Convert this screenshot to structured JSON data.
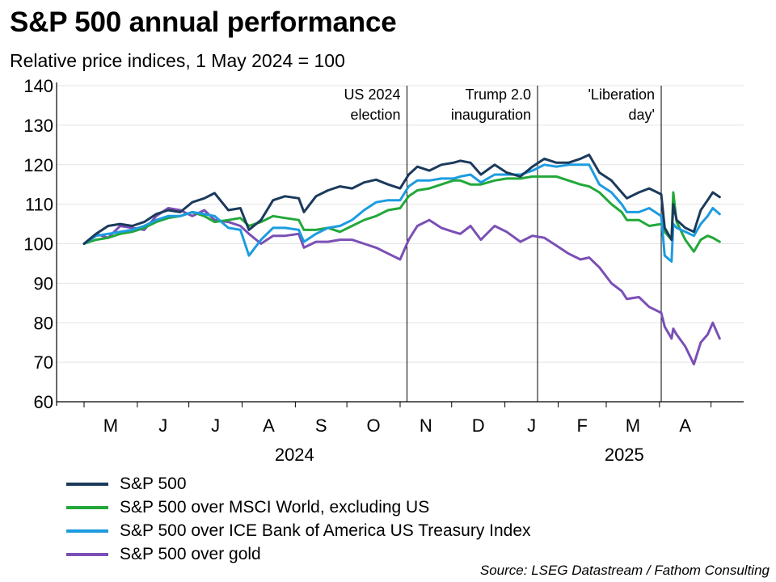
{
  "title": "S&P 500 annual performance",
  "subtitle": "Relative price indices, 1 May 2024 = 100",
  "source": "Source: LSEG Datastream / Fathom Consulting",
  "chart_data": {
    "type": "line",
    "ylim": [
      60,
      140
    ],
    "y_ticks": [
      "60",
      "70",
      "80",
      "90",
      "100",
      "110",
      "120",
      "130",
      "140"
    ],
    "month_labels": [
      "M",
      "J",
      "J",
      "A",
      "S",
      "O",
      "N",
      "D",
      "J",
      "F",
      "M",
      "A"
    ],
    "year_labels": [
      "2024",
      "2025"
    ],
    "events": [
      {
        "date": "2024-11-05",
        "label_lines": [
          "US 2024",
          "election"
        ]
      },
      {
        "date": "2025-01-20",
        "label_lines": [
          "Trump 2.0",
          "inauguration"
        ]
      },
      {
        "date": "2025-04-02",
        "label_lines": [
          "'Liberation",
          "day'"
        ]
      }
    ],
    "series": [
      {
        "name": "S&P 500",
        "color": "#1b3a5c",
        "points": [
          [
            "2024-05-01",
            100
          ],
          [
            "2024-05-08",
            102.5
          ],
          [
            "2024-05-15",
            104.5
          ],
          [
            "2024-05-22",
            105
          ],
          [
            "2024-05-29",
            104.5
          ],
          [
            "2024-06-05",
            105.5
          ],
          [
            "2024-06-12",
            107.5
          ],
          [
            "2024-06-19",
            108.5
          ],
          [
            "2024-06-26",
            108
          ],
          [
            "2024-07-03",
            110.5
          ],
          [
            "2024-07-10",
            111.5
          ],
          [
            "2024-07-16",
            112.8
          ],
          [
            "2024-07-24",
            108.5
          ],
          [
            "2024-07-31",
            109
          ],
          [
            "2024-08-05",
            103.5
          ],
          [
            "2024-08-12",
            106
          ],
          [
            "2024-08-19",
            111
          ],
          [
            "2024-08-26",
            112
          ],
          [
            "2024-09-03",
            111.5
          ],
          [
            "2024-09-06",
            108
          ],
          [
            "2024-09-13",
            112
          ],
          [
            "2024-09-20",
            113.5
          ],
          [
            "2024-09-27",
            114.5
          ],
          [
            "2024-10-04",
            114
          ],
          [
            "2024-10-11",
            115.5
          ],
          [
            "2024-10-18",
            116.2
          ],
          [
            "2024-10-25",
            115
          ],
          [
            "2024-11-01",
            114
          ],
          [
            "2024-11-06",
            117.5
          ],
          [
            "2024-11-11",
            119.5
          ],
          [
            "2024-11-18",
            118.5
          ],
          [
            "2024-11-25",
            120
          ],
          [
            "2024-12-02",
            120.5
          ],
          [
            "2024-12-06",
            121
          ],
          [
            "2024-12-12",
            120.5
          ],
          [
            "2024-12-18",
            117.5
          ],
          [
            "2024-12-26",
            120
          ],
          [
            "2025-01-02",
            118
          ],
          [
            "2025-01-10",
            117
          ],
          [
            "2025-01-17",
            119.5
          ],
          [
            "2025-01-24",
            121.5
          ],
          [
            "2025-01-31",
            120.5
          ],
          [
            "2025-02-07",
            120.5
          ],
          [
            "2025-02-14",
            121.5
          ],
          [
            "2025-02-19",
            122.5
          ],
          [
            "2025-02-25",
            118
          ],
          [
            "2025-03-04",
            116
          ],
          [
            "2025-03-10",
            113
          ],
          [
            "2025-03-13",
            111.5
          ],
          [
            "2025-03-20",
            113
          ],
          [
            "2025-03-26",
            114
          ],
          [
            "2025-04-02",
            112.5
          ],
          [
            "2025-04-04",
            104
          ],
          [
            "2025-04-08",
            101
          ],
          [
            "2025-04-09",
            110
          ],
          [
            "2025-04-11",
            106
          ],
          [
            "2025-04-16",
            104
          ],
          [
            "2025-04-21",
            103
          ],
          [
            "2025-04-25",
            108.5
          ],
          [
            "2025-04-29",
            111
          ],
          [
            "2025-05-02",
            113
          ],
          [
            "2025-05-06",
            111.8
          ]
        ]
      },
      {
        "name": "S&P 500 over MSCI World, excluding US",
        "color": "#22a83a",
        "points": [
          [
            "2024-05-01",
            100
          ],
          [
            "2024-05-08",
            101
          ],
          [
            "2024-05-15",
            101.5
          ],
          [
            "2024-05-22",
            102.5
          ],
          [
            "2024-05-29",
            103
          ],
          [
            "2024-06-05",
            104
          ],
          [
            "2024-06-12",
            105.5
          ],
          [
            "2024-06-19",
            106.5
          ],
          [
            "2024-06-26",
            107
          ],
          [
            "2024-07-03",
            108
          ],
          [
            "2024-07-10",
            107
          ],
          [
            "2024-07-16",
            105.5
          ],
          [
            "2024-07-24",
            106
          ],
          [
            "2024-07-31",
            106.5
          ],
          [
            "2024-08-05",
            104.5
          ],
          [
            "2024-08-12",
            105.5
          ],
          [
            "2024-08-19",
            107
          ],
          [
            "2024-08-26",
            106.5
          ],
          [
            "2024-09-03",
            106
          ],
          [
            "2024-09-06",
            103.5
          ],
          [
            "2024-09-13",
            103.5
          ],
          [
            "2024-09-20",
            104
          ],
          [
            "2024-09-27",
            103
          ],
          [
            "2024-10-04",
            104.5
          ],
          [
            "2024-10-11",
            106
          ],
          [
            "2024-10-18",
            107
          ],
          [
            "2024-10-25",
            108.5
          ],
          [
            "2024-11-01",
            109
          ],
          [
            "2024-11-06",
            112
          ],
          [
            "2024-11-11",
            113.5
          ],
          [
            "2024-11-18",
            114
          ],
          [
            "2024-11-25",
            115
          ],
          [
            "2024-12-02",
            116
          ],
          [
            "2024-12-06",
            116
          ],
          [
            "2024-12-12",
            115
          ],
          [
            "2024-12-18",
            115
          ],
          [
            "2024-12-26",
            116
          ],
          [
            "2025-01-02",
            116.5
          ],
          [
            "2025-01-10",
            116.5
          ],
          [
            "2025-01-17",
            117
          ],
          [
            "2025-01-24",
            117
          ],
          [
            "2025-01-31",
            117
          ],
          [
            "2025-02-07",
            116
          ],
          [
            "2025-02-14",
            115
          ],
          [
            "2025-02-19",
            114.5
          ],
          [
            "2025-02-25",
            113
          ],
          [
            "2025-03-04",
            110
          ],
          [
            "2025-03-10",
            108
          ],
          [
            "2025-03-13",
            106
          ],
          [
            "2025-03-20",
            106
          ],
          [
            "2025-03-26",
            104.5
          ],
          [
            "2025-04-02",
            105
          ],
          [
            "2025-04-04",
            103
          ],
          [
            "2025-04-08",
            101
          ],
          [
            "2025-04-09",
            113
          ],
          [
            "2025-04-11",
            105.5
          ],
          [
            "2025-04-16",
            101
          ],
          [
            "2025-04-21",
            98
          ],
          [
            "2025-04-25",
            101
          ],
          [
            "2025-04-29",
            102
          ],
          [
            "2025-05-02",
            101.5
          ],
          [
            "2025-05-06",
            100.5
          ]
        ]
      },
      {
        "name": "S&P 500 over ICE Bank of America US Treasury Index",
        "color": "#1c9ce0",
        "points": [
          [
            "2024-05-01",
            100
          ],
          [
            "2024-05-08",
            102
          ],
          [
            "2024-05-15",
            102.5
          ],
          [
            "2024-05-22",
            103
          ],
          [
            "2024-05-29",
            103.5
          ],
          [
            "2024-06-05",
            104.5
          ],
          [
            "2024-06-12",
            106
          ],
          [
            "2024-06-19",
            107
          ],
          [
            "2024-06-26",
            107
          ],
          [
            "2024-07-03",
            108
          ],
          [
            "2024-07-10",
            107.5
          ],
          [
            "2024-07-16",
            107
          ],
          [
            "2024-07-24",
            104
          ],
          [
            "2024-07-31",
            103.5
          ],
          [
            "2024-08-05",
            97
          ],
          [
            "2024-08-12",
            101
          ],
          [
            "2024-08-19",
            104
          ],
          [
            "2024-08-26",
            104
          ],
          [
            "2024-09-03",
            103.5
          ],
          [
            "2024-09-06",
            100.5
          ],
          [
            "2024-09-13",
            102.5
          ],
          [
            "2024-09-20",
            104
          ],
          [
            "2024-09-27",
            104.5
          ],
          [
            "2024-10-04",
            106
          ],
          [
            "2024-10-11",
            108.5
          ],
          [
            "2024-10-18",
            110.5
          ],
          [
            "2024-10-25",
            111
          ],
          [
            "2024-11-01",
            111
          ],
          [
            "2024-11-06",
            114.5
          ],
          [
            "2024-11-11",
            116
          ],
          [
            "2024-11-18",
            116
          ],
          [
            "2024-11-25",
            116.5
          ],
          [
            "2024-12-02",
            116.5
          ],
          [
            "2024-12-06",
            117
          ],
          [
            "2024-12-12",
            117.5
          ],
          [
            "2024-12-18",
            115.5
          ],
          [
            "2024-12-26",
            117.5
          ],
          [
            "2025-01-02",
            117.5
          ],
          [
            "2025-01-10",
            117.5
          ],
          [
            "2025-01-17",
            118.5
          ],
          [
            "2025-01-24",
            120
          ],
          [
            "2025-01-31",
            119.5
          ],
          [
            "2025-02-07",
            120
          ],
          [
            "2025-02-14",
            120
          ],
          [
            "2025-02-19",
            120
          ],
          [
            "2025-02-25",
            115
          ],
          [
            "2025-03-04",
            113
          ],
          [
            "2025-03-10",
            110
          ],
          [
            "2025-03-13",
            108
          ],
          [
            "2025-03-20",
            108
          ],
          [
            "2025-03-26",
            109
          ],
          [
            "2025-04-02",
            107
          ],
          [
            "2025-04-04",
            97
          ],
          [
            "2025-04-08",
            95.5
          ],
          [
            "2025-04-09",
            105
          ],
          [
            "2025-04-11",
            104
          ],
          [
            "2025-04-16",
            103
          ],
          [
            "2025-04-21",
            102
          ],
          [
            "2025-04-25",
            105
          ],
          [
            "2025-04-29",
            107
          ],
          [
            "2025-05-02",
            109
          ],
          [
            "2025-05-06",
            107.5
          ]
        ]
      },
      {
        "name": "S&P 500 over gold",
        "color": "#7b4fb5",
        "points": [
          [
            "2024-05-01",
            100
          ],
          [
            "2024-05-08",
            102.5
          ],
          [
            "2024-05-15",
            101.5
          ],
          [
            "2024-05-22",
            104.5
          ],
          [
            "2024-05-29",
            104
          ],
          [
            "2024-06-05",
            103.5
          ],
          [
            "2024-06-12",
            107
          ],
          [
            "2024-06-19",
            109
          ],
          [
            "2024-06-26",
            108.5
          ],
          [
            "2024-07-03",
            107
          ],
          [
            "2024-07-10",
            108.5
          ],
          [
            "2024-07-16",
            106
          ],
          [
            "2024-07-24",
            105.5
          ],
          [
            "2024-07-31",
            104.5
          ],
          [
            "2024-08-05",
            102.5
          ],
          [
            "2024-08-12",
            100
          ],
          [
            "2024-08-19",
            102
          ],
          [
            "2024-08-26",
            102
          ],
          [
            "2024-09-03",
            102.5
          ],
          [
            "2024-09-06",
            99
          ],
          [
            "2024-09-13",
            100.5
          ],
          [
            "2024-09-20",
            100.5
          ],
          [
            "2024-09-27",
            101
          ],
          [
            "2024-10-04",
            101
          ],
          [
            "2024-10-11",
            100
          ],
          [
            "2024-10-18",
            99
          ],
          [
            "2024-10-25",
            97.5
          ],
          [
            "2024-11-01",
            96
          ],
          [
            "2024-11-06",
            101
          ],
          [
            "2024-11-11",
            104.5
          ],
          [
            "2024-11-18",
            106
          ],
          [
            "2024-11-25",
            104
          ],
          [
            "2024-12-02",
            103
          ],
          [
            "2024-12-06",
            102.5
          ],
          [
            "2024-12-12",
            104.5
          ],
          [
            "2024-12-18",
            101
          ],
          [
            "2024-12-26",
            104.5
          ],
          [
            "2025-01-02",
            103
          ],
          [
            "2025-01-10",
            100.5
          ],
          [
            "2025-01-17",
            102
          ],
          [
            "2025-01-24",
            101.5
          ],
          [
            "2025-01-31",
            99.5
          ],
          [
            "2025-02-07",
            97.5
          ],
          [
            "2025-02-14",
            96
          ],
          [
            "2025-02-19",
            96.5
          ],
          [
            "2025-02-25",
            94
          ],
          [
            "2025-03-04",
            90
          ],
          [
            "2025-03-10",
            88
          ],
          [
            "2025-03-13",
            86
          ],
          [
            "2025-03-20",
            86.5
          ],
          [
            "2025-03-26",
            84
          ],
          [
            "2025-04-02",
            82.5
          ],
          [
            "2025-04-04",
            79
          ],
          [
            "2025-04-08",
            76
          ],
          [
            "2025-04-09",
            78.5
          ],
          [
            "2025-04-11",
            77
          ],
          [
            "2025-04-16",
            74
          ],
          [
            "2025-04-21",
            69.5
          ],
          [
            "2025-04-25",
            75
          ],
          [
            "2025-04-29",
            77
          ],
          [
            "2025-05-02",
            80
          ],
          [
            "2025-05-06",
            76
          ]
        ]
      }
    ]
  }
}
